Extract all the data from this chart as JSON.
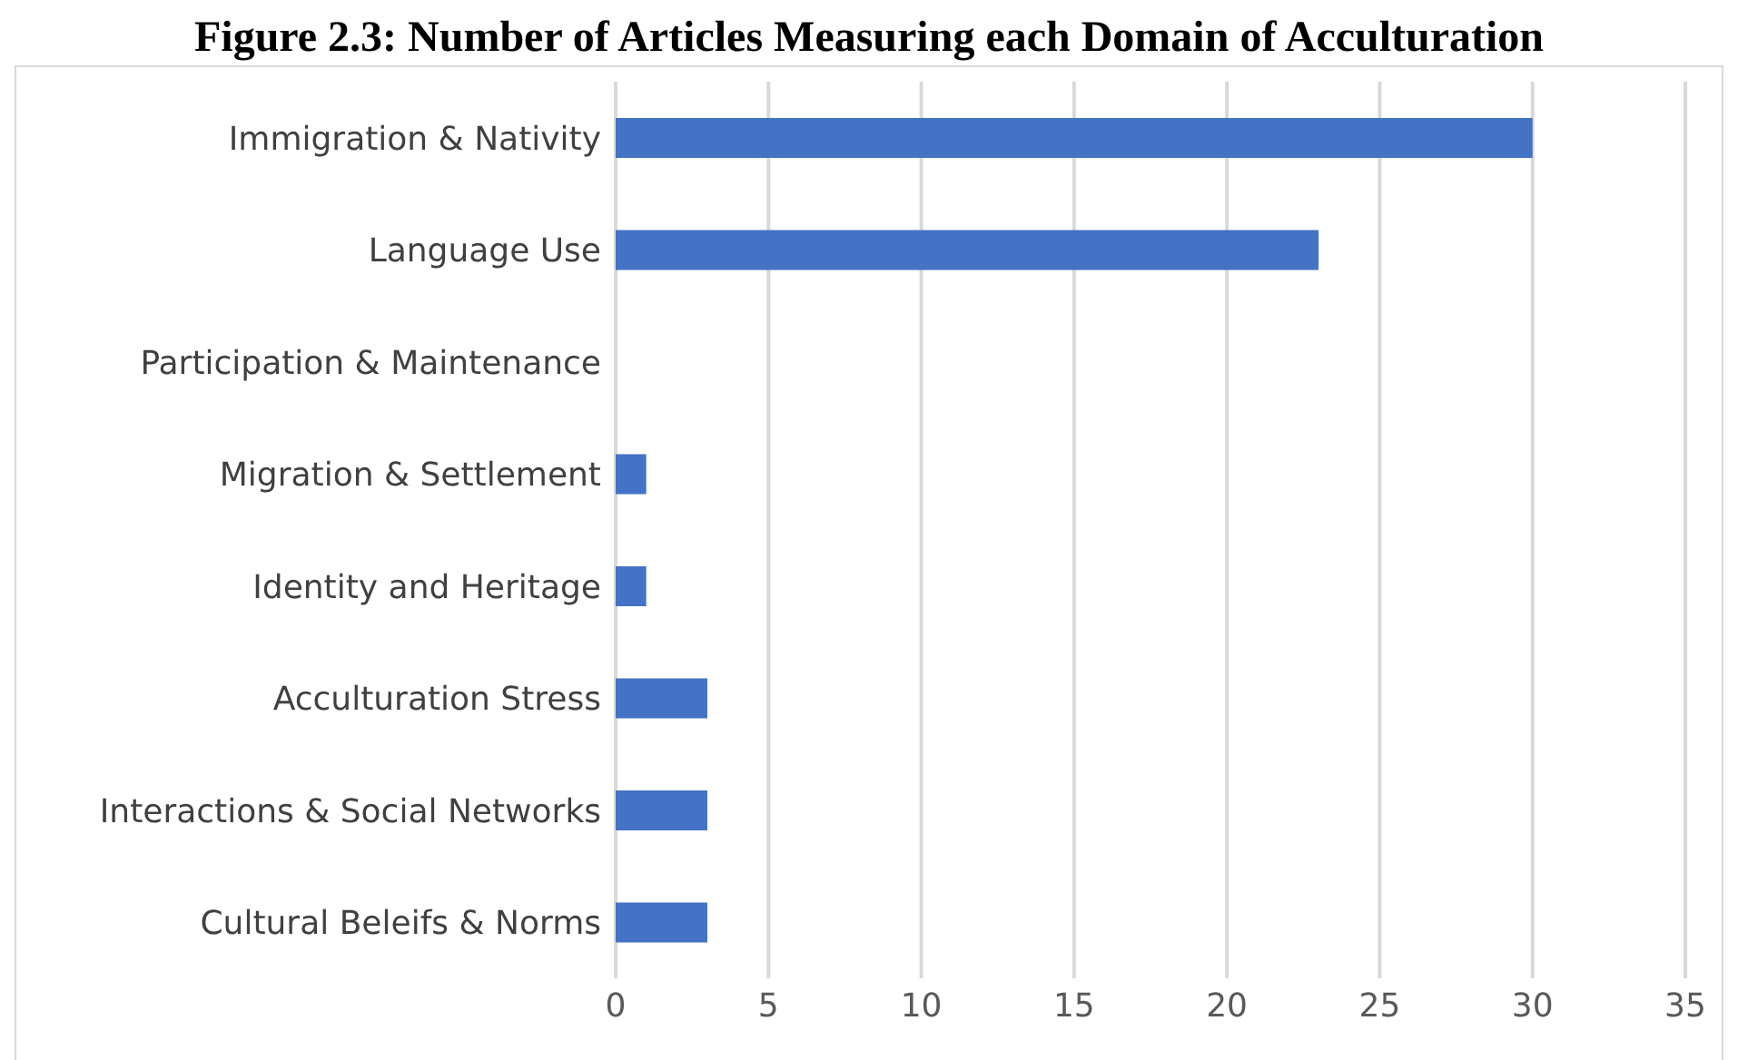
{
  "chart_data": {
    "type": "bar",
    "orientation": "horizontal",
    "title": "Figure 2.3: Number of Articles Measuring each Domain of Acculturation",
    "categories": [
      "Immigration & Nativity",
      "Language Use",
      "Participation & Maintenance",
      "Migration & Settlement",
      "Identity and Heritage",
      "Acculturation Stress",
      "Interactions & Social Networks",
      "Cultural Beleifs & Norms"
    ],
    "values": [
      30,
      23,
      0,
      1,
      1,
      3,
      3,
      3
    ],
    "color": "#4472c4",
    "xlim": [
      0,
      35
    ],
    "xticks": [
      0,
      5,
      10,
      15,
      20,
      25,
      30,
      35
    ],
    "grid": "x"
  }
}
